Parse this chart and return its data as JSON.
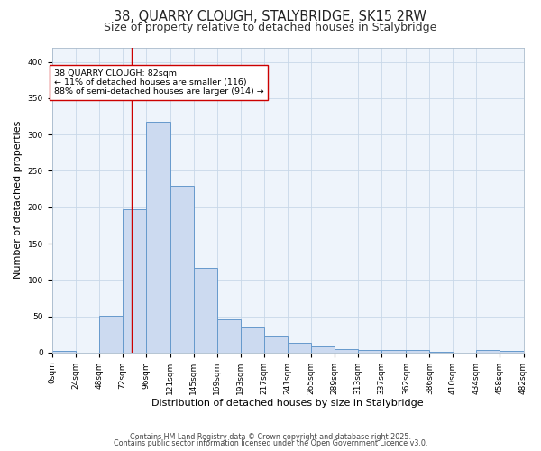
{
  "title_line1": "38, QUARRY CLOUGH, STALYBRIDGE, SK15 2RW",
  "title_line2": "Size of property relative to detached houses in Stalybridge",
  "xlabel": "Distribution of detached houses by size in Stalybridge",
  "ylabel": "Number of detached properties",
  "bin_edges": [
    0,
    24,
    48,
    72,
    96,
    121,
    145,
    169,
    193,
    217,
    241,
    265,
    289,
    313,
    337,
    362,
    386,
    410,
    434,
    458,
    482
  ],
  "bin_labels": [
    "0sqm",
    "24sqm",
    "48sqm",
    "72sqm",
    "96sqm",
    "121sqm",
    "145sqm",
    "169sqm",
    "193sqm",
    "217sqm",
    "241sqm",
    "265sqm",
    "289sqm",
    "313sqm",
    "337sqm",
    "362sqm",
    "386sqm",
    "410sqm",
    "434sqm",
    "458sqm",
    "482sqm"
  ],
  "counts": [
    2,
    0,
    51,
    197,
    317,
    229,
    117,
    46,
    35,
    22,
    13,
    9,
    5,
    4,
    3,
    3,
    1,
    0,
    4,
    2
  ],
  "bar_facecolor": "#ccdaf0",
  "bar_edgecolor": "#6699cc",
  "property_size_sqm": 82,
  "vline_color": "#cc0000",
  "annotation_text": "38 QUARRY CLOUGH: 82sqm\n← 11% of detached houses are smaller (116)\n88% of semi-detached houses are larger (914) →",
  "annotation_box_edgecolor": "#cc0000",
  "annotation_box_facecolor": "#ffffff",
  "grid_color": "#c8d8e8",
  "background_color": "#ffffff",
  "axes_background": "#eef4fb",
  "ylim": [
    0,
    420
  ],
  "yticks": [
    0,
    50,
    100,
    150,
    200,
    250,
    300,
    350,
    400
  ],
  "footnote1": "Contains HM Land Registry data © Crown copyright and database right 2025.",
  "footnote2": "Contains public sector information licensed under the Open Government Licence v3.0.",
  "title_fontsize": 10.5,
  "subtitle_fontsize": 9,
  "axis_label_fontsize": 8,
  "tick_fontsize": 6.5,
  "annotation_fontsize": 6.8,
  "footnote_fontsize": 5.8
}
